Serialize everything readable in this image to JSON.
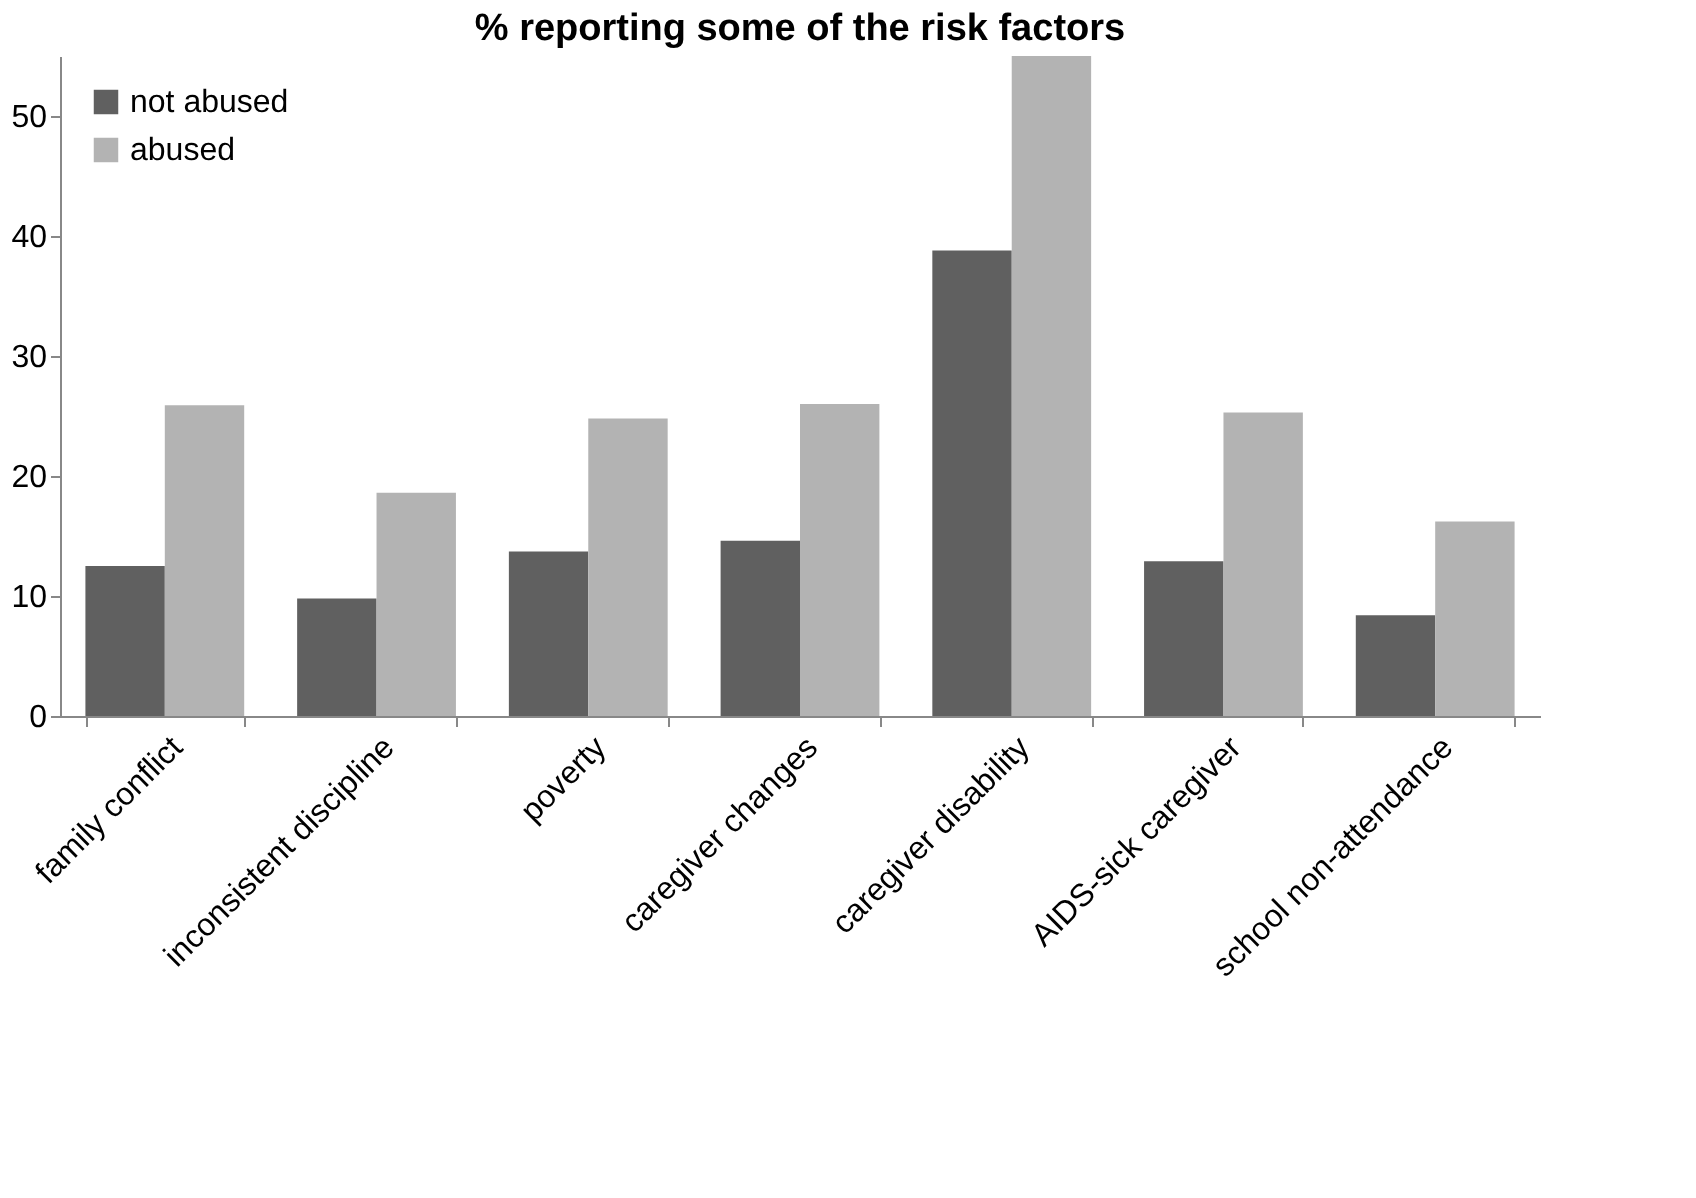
{
  "chart_data": {
    "type": "bar",
    "title": "% reporting some of the risk factors",
    "categories": [
      "family conflict",
      "inconsistent discipline",
      "poverty",
      "caregiver changes",
      "caregiver disability",
      "AIDS-sick caregiver",
      "school non-attendance"
    ],
    "series": [
      {
        "name": "not abused",
        "color": "#606060",
        "values": [
          12.5,
          9.8,
          13.7,
          14.6,
          38.8,
          12.9,
          8.4
        ]
      },
      {
        "name": "abused",
        "color": "#b3b3b3",
        "values": [
          25.9,
          18.6,
          24.8,
          26.0,
          55.0,
          25.3,
          16.2
        ]
      }
    ],
    "ylim": [
      0,
      55
    ],
    "yticks": [
      0,
      10,
      20,
      30,
      40,
      50
    ],
    "grid": false,
    "legend": "top left"
  }
}
